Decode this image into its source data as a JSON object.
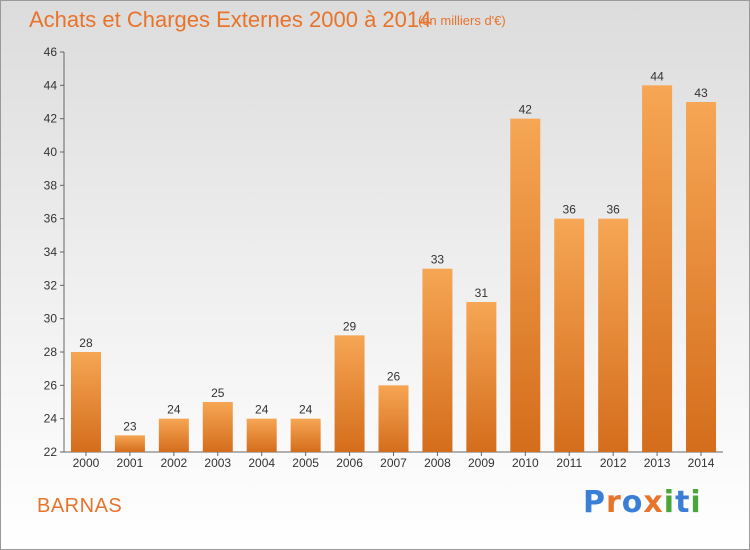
{
  "header": {
    "title": "Achats et Charges Externes 2000 à 2014",
    "unit": "(en milliers d'€)"
  },
  "footer": {
    "commune": "BARNAS",
    "logo_text": "Proxiti"
  },
  "colors": {
    "accent": "#e8732a",
    "bar_light": "#f6a654",
    "bar_dark": "#d46d1c",
    "logo": [
      "#3a7fd5",
      "#e8732a",
      "#3a7fd5",
      "#e8732a",
      "#4aa53a",
      "#3a7fd5",
      "#4aa53a"
    ]
  },
  "chart_data": {
    "type": "bar",
    "title": "Achats et Charges Externes 2000 à 2014",
    "subtitle": "(en milliers d'€)",
    "xlabel": "",
    "ylabel": "",
    "categories": [
      "2000",
      "2001",
      "2002",
      "2003",
      "2004",
      "2005",
      "2006",
      "2007",
      "2008",
      "2009",
      "2010",
      "2011",
      "2012",
      "2013",
      "2014"
    ],
    "values": [
      28,
      23,
      24,
      25,
      24,
      24,
      29,
      26,
      33,
      31,
      42,
      36,
      36,
      44,
      43
    ],
    "ylim": [
      22,
      46
    ],
    "yticks": [
      22,
      24,
      26,
      28,
      30,
      32,
      34,
      36,
      38,
      40,
      42,
      44,
      46
    ],
    "grid": false,
    "legend": "none",
    "data_labels": true
  }
}
